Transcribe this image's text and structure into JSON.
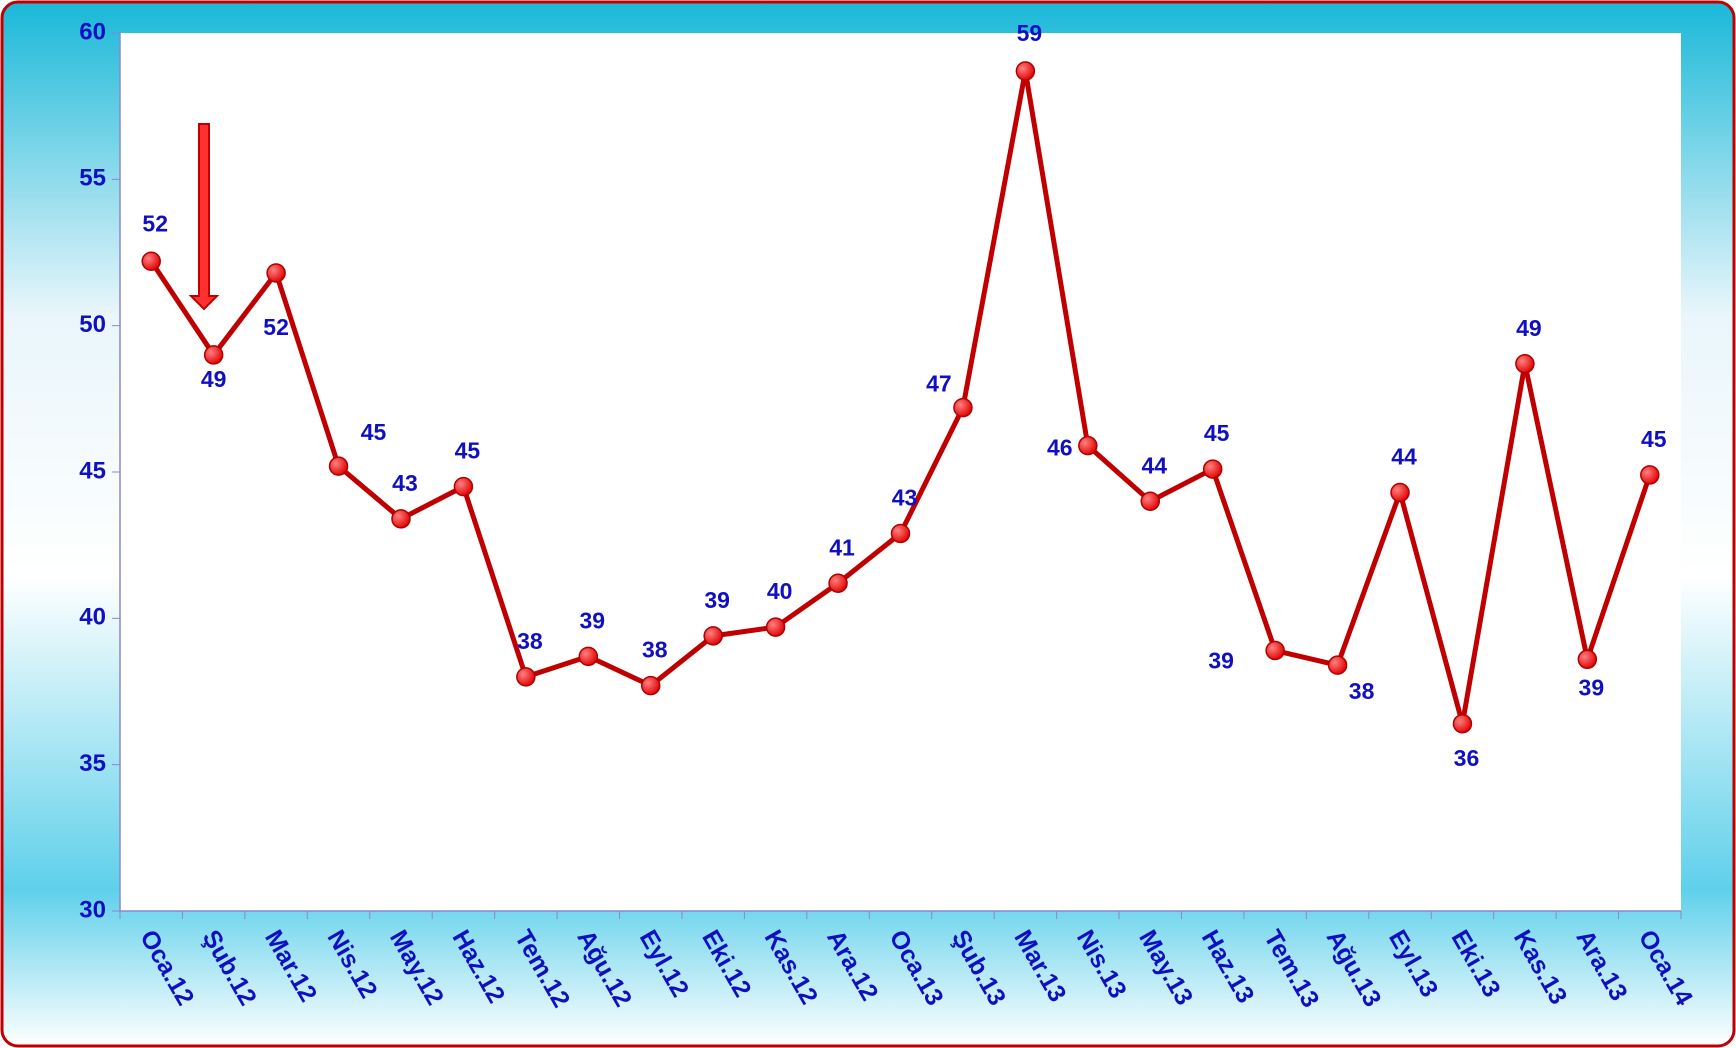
{
  "chart_data": {
    "type": "line",
    "categories": [
      "Oca.12",
      "Şub.12",
      "Mar.12",
      "Nis.12",
      "May.12",
      "Haz.12",
      "Tem.12",
      "Ağu.12",
      "Eyl.12",
      "Eki.12",
      "Kas.12",
      "Ara.12",
      "Oca.13",
      "Şub.13",
      "Mar.13",
      "Nis.13",
      "May.13",
      "Haz.13",
      "Tem.13",
      "Ağu.13",
      "Eyl.13",
      "Eki.13",
      "Kas.13",
      "Ara.13",
      "Oca.14"
    ],
    "series": [
      {
        "color": "#c00000",
        "values": [
          52.2,
          49.0,
          51.8,
          45.2,
          43.4,
          44.5,
          38.0,
          38.7,
          37.7,
          39.4,
          39.7,
          41.2,
          42.9,
          47.2,
          58.7,
          45.9,
          44.0,
          45.1,
          38.9,
          38.4,
          44.3,
          36.4,
          48.7,
          38.6,
          44.9
        ],
        "value_labels": [
          "52",
          "49",
          "52",
          "45",
          "43",
          "45",
          "38",
          "39",
          "38",
          "39",
          "40",
          "41",
          "43",
          "47",
          "59",
          "46",
          "44",
          "45",
          "39",
          "38",
          "44",
          "36",
          "49",
          "39",
          "45"
        ]
      }
    ],
    "ylim": [
      30,
      60
    ],
    "yticks": [
      30,
      35,
      40,
      45,
      50,
      55,
      60
    ],
    "grid": false
  }
}
